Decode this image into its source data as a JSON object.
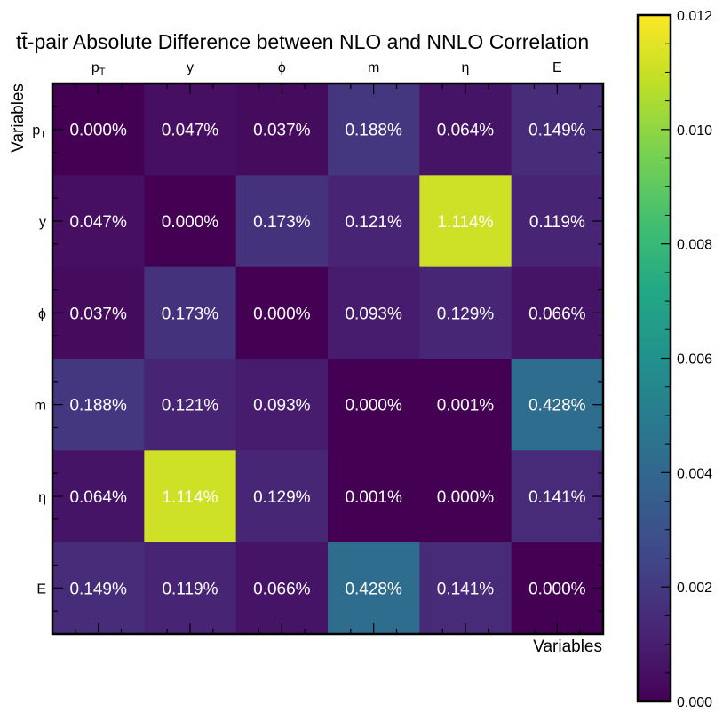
{
  "chart_data": {
    "type": "heatmap",
    "title": "tt̄-pair Absolute Difference between NLO and NNLO Correlation",
    "xlabel": "Variables",
    "ylabel": "Variables",
    "x_categories": [
      {
        "main": "p",
        "sub": "T"
      },
      {
        "main": "y",
        "sub": ""
      },
      {
        "main": "ϕ",
        "sub": ""
      },
      {
        "main": "m",
        "sub": ""
      },
      {
        "main": "η",
        "sub": ""
      },
      {
        "main": "E",
        "sub": ""
      }
    ],
    "y_categories": [
      {
        "main": "p",
        "sub": "T"
      },
      {
        "main": "y",
        "sub": ""
      },
      {
        "main": "ϕ",
        "sub": ""
      },
      {
        "main": "m",
        "sub": ""
      },
      {
        "main": "η",
        "sub": ""
      },
      {
        "main": "E",
        "sub": ""
      }
    ],
    "values": [
      [
        0.0,
        0.00047,
        0.00037,
        0.00188,
        0.00064,
        0.00149
      ],
      [
        0.00047,
        0.0,
        0.00173,
        0.00121,
        0.01114,
        0.00119
      ],
      [
        0.00037,
        0.00173,
        0.0,
        0.00093,
        0.00129,
        0.00066
      ],
      [
        0.00188,
        0.00121,
        0.00093,
        0.0,
        1e-05,
        0.00428
      ],
      [
        0.00064,
        0.01114,
        0.00129,
        1e-05,
        0.0,
        0.00141
      ],
      [
        0.00149,
        0.00119,
        0.00066,
        0.00428,
        0.00141,
        0.0
      ]
    ],
    "cell_labels": [
      [
        "0.000%",
        "0.047%",
        "0.037%",
        "0.188%",
        "0.064%",
        "0.149%"
      ],
      [
        "0.047%",
        "0.000%",
        "0.173%",
        "0.121%",
        "1.114%",
        "0.119%"
      ],
      [
        "0.037%",
        "0.173%",
        "0.000%",
        "0.093%",
        "0.129%",
        "0.066%"
      ],
      [
        "0.188%",
        "0.121%",
        "0.093%",
        "0.000%",
        "0.001%",
        "0.428%"
      ],
      [
        "0.064%",
        "1.114%",
        "0.129%",
        "0.001%",
        "0.000%",
        "0.141%"
      ],
      [
        "0.149%",
        "0.119%",
        "0.066%",
        "0.428%",
        "0.141%",
        "0.000%"
      ]
    ],
    "colorbar": {
      "colormap": "viridis",
      "range": [
        0.0,
        0.012
      ],
      "tick_labels": [
        "0.000",
        "0.002",
        "0.004",
        "0.006",
        "0.008",
        "0.010",
        "0.012"
      ]
    },
    "cell_text_color": "#ffffff"
  }
}
